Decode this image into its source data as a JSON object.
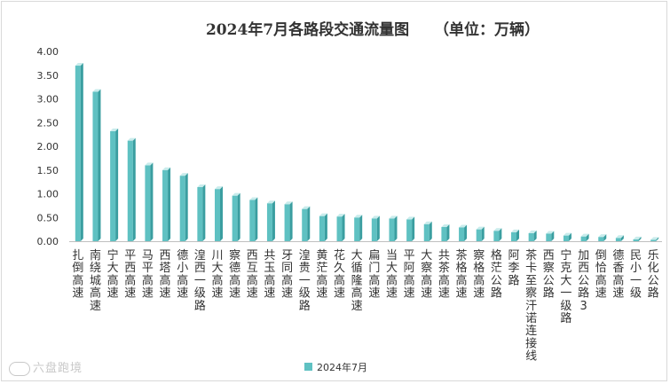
{
  "chart_data": {
    "type": "bar",
    "title": "2024年7月各路段交通流量图",
    "unit_label": "（单位：万辆）",
    "legend": [
      "2024年7月"
    ],
    "legend_position": "bottom",
    "xlabel": "",
    "ylabel": "",
    "ylim": [
      0,
      4
    ],
    "yticks": [
      "0.00",
      "0.50",
      "1.00",
      "1.50",
      "2.00",
      "2.50",
      "3.00",
      "3.50",
      "4.00"
    ],
    "grid": false,
    "categories": [
      "扎倒高速",
      "南绕城高速",
      "宁大高速",
      "平西高速",
      "马平高速",
      "西塔高速",
      "德小高速",
      "湟西一级路",
      "川大高速",
      "察德高速",
      "西互高速",
      "共玉高速",
      "牙同高速",
      "湟贵一级路",
      "黄茫高速",
      "花久高速",
      "大循隆高速",
      "扁门高速",
      "当大高速",
      "平阿高速",
      "大察高速",
      "共茶高速",
      "茶格高速",
      "察格高速",
      "格茫公路",
      "阿李路",
      "茶卡至察汗诺连接线",
      "西察公路",
      "宁克大一级路",
      "加西公路3",
      "倒恰高速",
      "德香高速",
      "民小一级",
      "乐化公路"
    ],
    "values": [
      3.7,
      3.15,
      2.32,
      2.12,
      1.6,
      1.5,
      1.38,
      1.14,
      1.1,
      0.96,
      0.87,
      0.8,
      0.78,
      0.68,
      0.53,
      0.52,
      0.5,
      0.48,
      0.48,
      0.46,
      0.36,
      0.3,
      0.29,
      0.25,
      0.22,
      0.19,
      0.17,
      0.16,
      0.12,
      0.1,
      0.09,
      0.07,
      0.04,
      0.03
    ]
  },
  "colors": {
    "bar_front": "#5fc1c2",
    "bar_side": "#3a9ea0",
    "bar_top": "#c9ecec",
    "axis": "#7f7f7f",
    "text": "#333333"
  },
  "watermark": "六盘跑境"
}
